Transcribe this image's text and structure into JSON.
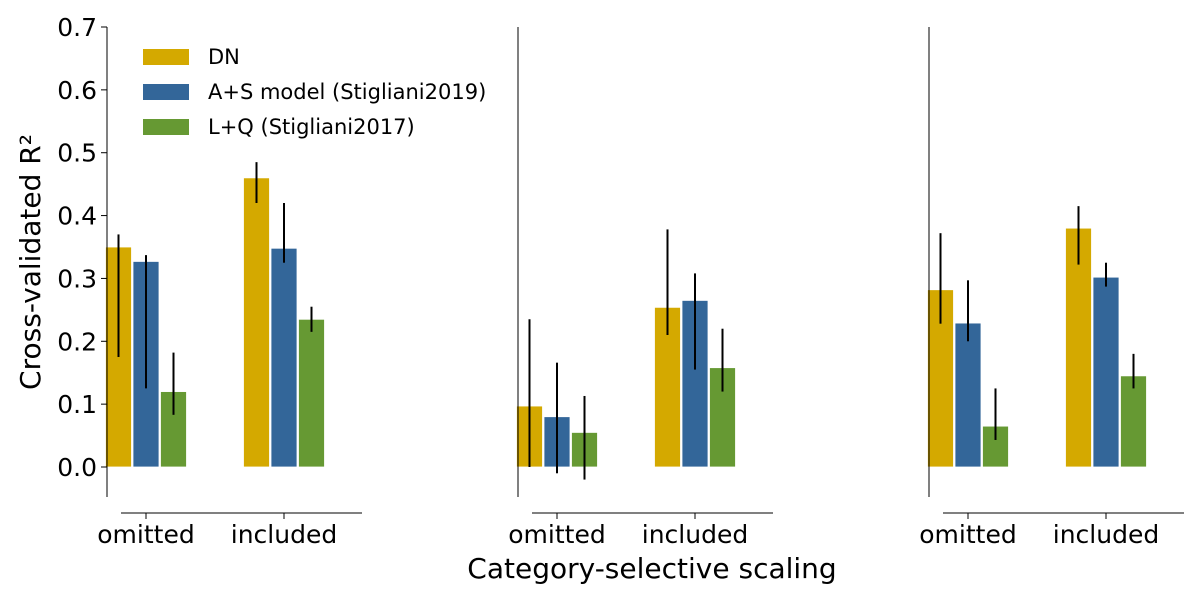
{
  "chart_data": {
    "type": "bar",
    "ylabel": "Cross-validated R²",
    "xlabel": "Category-selective scaling",
    "ylim": [
      -0.05,
      0.7
    ],
    "yticks": [
      "0.0",
      "0.1",
      "0.2",
      "0.3",
      "0.4",
      "0.5",
      "0.6",
      "0.7"
    ],
    "categories": [
      "omitted",
      "included"
    ],
    "legend_position": "top-left",
    "series": [
      {
        "name": "DN",
        "color": "#d4a900"
      },
      {
        "name": "A+S model (Stigliani2019)",
        "color": "#336699"
      },
      {
        "name": "L+Q (Stigliani2017)",
        "color": "#669933"
      }
    ],
    "panels": [
      {
        "values": [
          [
            0.35,
            0.46
          ],
          [
            0.327,
            0.348
          ],
          [
            0.12,
            0.235
          ]
        ],
        "errors": [
          [
            [
              0.175,
              0.37
            ],
            [
              0.42,
              0.485
            ]
          ],
          [
            [
              0.125,
              0.337
            ],
            [
              0.325,
              0.42
            ]
          ],
          [
            [
              0.083,
              0.182
            ],
            [
              0.215,
              0.255
            ]
          ]
        ]
      },
      {
        "values": [
          [
            0.097,
            0.254
          ],
          [
            0.08,
            0.265
          ],
          [
            0.055,
            0.158
          ]
        ],
        "errors": [
          [
            [
              0.0,
              0.235
            ],
            [
              0.21,
              0.378
            ]
          ],
          [
            [
              -0.01,
              0.166
            ],
            [
              0.155,
              0.308
            ]
          ],
          [
            [
              -0.02,
              0.113
            ],
            [
              0.12,
              0.22
            ]
          ]
        ]
      },
      {
        "values": [
          [
            0.282,
            0.38
          ],
          [
            0.229,
            0.302
          ],
          [
            0.065,
            0.145
          ]
        ],
        "errors": [
          [
            [
              0.228,
              0.372
            ],
            [
              0.322,
              0.415
            ]
          ],
          [
            [
              0.2,
              0.297
            ],
            [
              0.287,
              0.325
            ]
          ],
          [
            [
              0.043,
              0.125
            ],
            [
              0.125,
              0.18
            ]
          ]
        ]
      }
    ]
  }
}
